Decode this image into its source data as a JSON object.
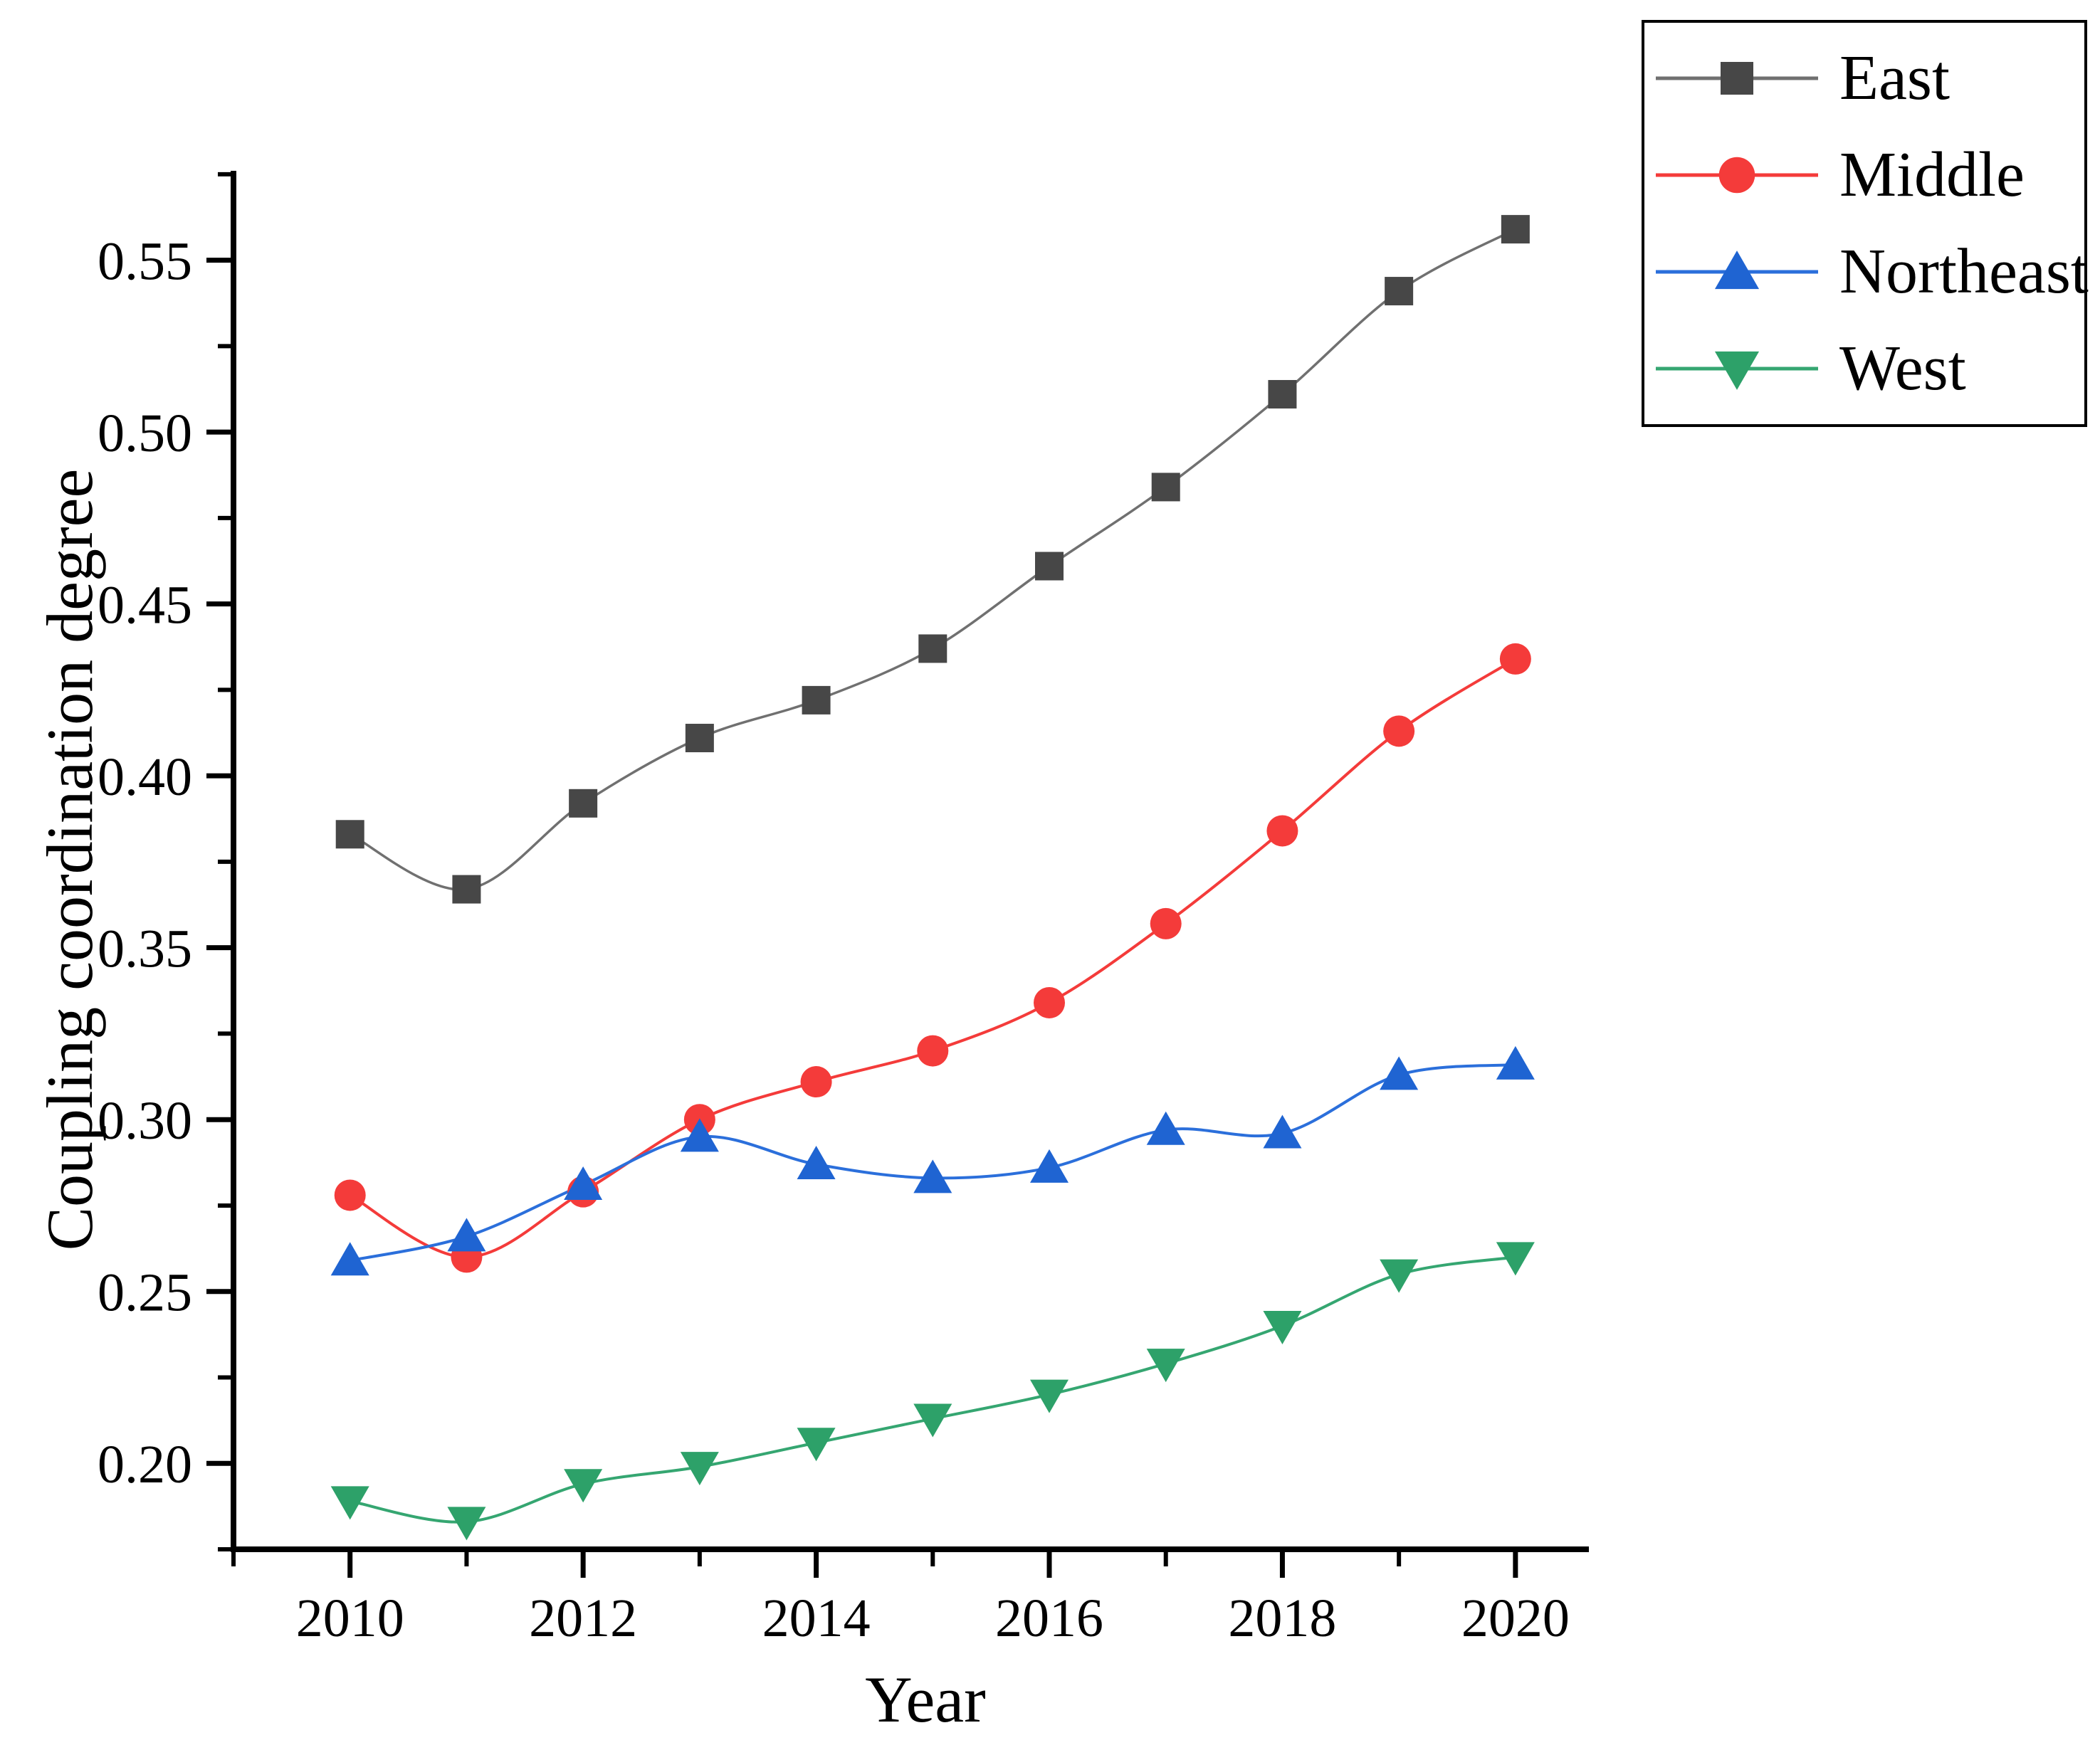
{
  "chart_data": {
    "type": "line",
    "title": "",
    "xlabel": "Year",
    "ylabel": "Coupling coordination degree",
    "grid": false,
    "legend_position": "top-right-outside",
    "background_color": "#ffffff",
    "axis_color": "#000000",
    "x": [
      2010,
      2011,
      2012,
      2013,
      2014,
      2015,
      2016,
      2017,
      2018,
      2019,
      2020
    ],
    "series": [
      {
        "name": "East",
        "marker": "square",
        "color": "#474747",
        "line_color": "#707070",
        "values": [
          0.383,
          0.367,
          0.392,
          0.411,
          0.422,
          0.437,
          0.461,
          0.484,
          0.511,
          0.541,
          0.559
        ]
      },
      {
        "name": "Middle",
        "marker": "circle",
        "color": "#f43b3a",
        "line_color": "#f43b3a",
        "values": [
          0.278,
          0.26,
          0.279,
          0.3,
          0.311,
          0.32,
          0.334,
          0.357,
          0.384,
          0.413,
          0.434
        ]
      },
      {
        "name": "Northeast",
        "marker": "triangle-up",
        "color": "#1f64d2",
        "line_color": "#2b6fdb",
        "values": [
          0.259,
          0.266,
          0.281,
          0.295,
          0.287,
          0.283,
          0.286,
          0.297,
          0.296,
          0.313,
          0.316
        ]
      },
      {
        "name": "West",
        "marker": "triangle-down",
        "color": "#2da169",
        "line_color": "#35a671",
        "values": [
          0.189,
          0.183,
          0.194,
          0.199,
          0.206,
          0.213,
          0.22,
          0.229,
          0.24,
          0.255,
          0.26
        ]
      }
    ],
    "xlim": [
      2009.0,
      2020.63
    ],
    "ylim": [
      0.175,
      0.576
    ],
    "xticks": {
      "major": [
        2010,
        2012,
        2014,
        2016,
        2018,
        2020
      ],
      "labels": [
        "2010",
        "2012",
        "2014",
        "2016",
        "2018",
        "2020"
      ],
      "minor": [
        2009,
        2011,
        2013,
        2015,
        2017,
        2019
      ]
    },
    "yticks": {
      "major": [
        0.2,
        0.25,
        0.3,
        0.35,
        0.4,
        0.45,
        0.5,
        0.55
      ],
      "labels": [
        "0.20",
        "0.25",
        "0.30",
        "0.35",
        "0.40",
        "0.45",
        "0.50",
        "0.55"
      ],
      "minor": [
        0.175,
        0.225,
        0.275,
        0.325,
        0.375,
        0.425,
        0.475,
        0.525,
        0.575
      ]
    }
  }
}
